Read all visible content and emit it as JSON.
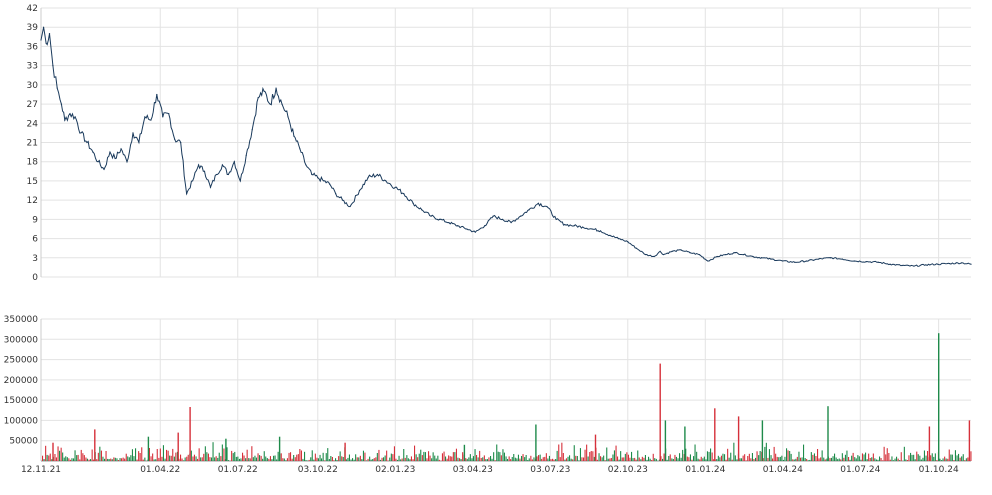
{
  "chart_data": [
    {
      "type": "line",
      "title": "",
      "xlabel": "",
      "ylabel": "",
      "ylim": [
        0,
        42
      ],
      "y_ticks": [
        0,
        3,
        6,
        9,
        12,
        15,
        18,
        21,
        24,
        27,
        30,
        33,
        36,
        39,
        42
      ],
      "grid": true,
      "line_color": "#1a3a5c",
      "series": [
        {
          "x": [
            "2021-11-12",
            "2021-11-15",
            "2021-11-18",
            "2021-11-22",
            "2021-11-26",
            "2021-12-01",
            "2021-12-06",
            "2021-12-10",
            "2021-12-16",
            "2021-12-22",
            "2021-12-29",
            "2022-01-05",
            "2022-01-12",
            "2022-01-18",
            "2022-01-25",
            "2022-02-01",
            "2022-02-07",
            "2022-02-14",
            "2022-02-21",
            "2022-02-28",
            "2022-03-07",
            "2022-03-14",
            "2022-03-21",
            "2022-03-28",
            "2022-04-04",
            "2022-04-11",
            "2022-04-18",
            "2022-04-25",
            "2022-05-02",
            "2022-05-09",
            "2022-05-16",
            "2022-05-23",
            "2022-05-30",
            "2022-06-06",
            "2022-06-13",
            "2022-06-20",
            "2022-06-27",
            "2022-07-04",
            "2022-07-11",
            "2022-07-18",
            "2022-07-25",
            "2022-08-01",
            "2022-08-08",
            "2022-08-15",
            "2022-08-22",
            "2022-08-29",
            "2022-09-05",
            "2022-09-12",
            "2022-09-19",
            "2022-09-26",
            "2022-10-03",
            "2022-10-10",
            "2022-10-17",
            "2022-10-24",
            "2022-11-01",
            "2022-11-10",
            "2022-11-21",
            "2022-12-01",
            "2022-12-12",
            "2022-12-22",
            "2023-01-02",
            "2023-01-12",
            "2023-01-23",
            "2023-02-02",
            "2023-02-13",
            "2023-02-23",
            "2023-03-06",
            "2023-03-16",
            "2023-03-27",
            "2023-04-06",
            "2023-04-17",
            "2023-04-27",
            "2023-05-08",
            "2023-05-18",
            "2023-05-29",
            "2023-06-08",
            "2023-06-19",
            "2023-06-29",
            "2023-07-10",
            "2023-07-20",
            "2023-07-31",
            "2023-08-10",
            "2023-08-21",
            "2023-08-31",
            "2023-09-11",
            "2023-09-21",
            "2023-10-02",
            "2023-10-12",
            "2023-10-23",
            "2023-11-02",
            "2023-11-09",
            "2023-11-13",
            "2023-11-23",
            "2023-12-04",
            "2023-12-14",
            "2023-12-25",
            "2024-01-04",
            "2024-01-15",
            "2024-01-25",
            "2024-02-05",
            "2024-02-15",
            "2024-02-26",
            "2024-03-07",
            "2024-03-18",
            "2024-04-01",
            "2024-04-15",
            "2024-04-29",
            "2024-05-13",
            "2024-05-27",
            "2024-06-10",
            "2024-06-24",
            "2024-07-08",
            "2024-07-22",
            "2024-08-05",
            "2024-08-19",
            "2024-09-02",
            "2024-09-16",
            "2024-09-30",
            "2024-10-14",
            "2024-10-28",
            "2024-11-08"
          ],
          "y": [
            37.0,
            39.0,
            36.5,
            38.0,
            33.0,
            29.5,
            27.0,
            24.5,
            25.5,
            25.0,
            22.5,
            21.0,
            19.5,
            18.0,
            16.8,
            19.5,
            18.5,
            20.0,
            18.0,
            22.5,
            21.0,
            25.0,
            24.5,
            28.5,
            25.0,
            25.5,
            21.5,
            21.0,
            13.0,
            15.0,
            17.5,
            16.5,
            14.0,
            16.0,
            17.5,
            16.0,
            18.0,
            15.0,
            19.0,
            23.0,
            28.0,
            29.0,
            27.0,
            29.5,
            27.0,
            25.0,
            22.0,
            20.0,
            17.5,
            16.0,
            15.5,
            15.0,
            14.5,
            13.0,
            12.0,
            11.0,
            13.5,
            15.5,
            16.0,
            15.0,
            14.0,
            13.0,
            11.5,
            10.5,
            9.5,
            9.0,
            8.5,
            8.0,
            7.5,
            7.0,
            8.0,
            9.5,
            9.0,
            8.5,
            9.5,
            10.5,
            11.5,
            11.0,
            9.0,
            8.2,
            8.0,
            7.8,
            7.5,
            7.2,
            6.5,
            6.0,
            5.5,
            4.5,
            3.5,
            3.2,
            4.0,
            3.5,
            4.0,
            4.2,
            3.8,
            3.5,
            2.5,
            3.2,
            3.5,
            3.8,
            3.5,
            3.2,
            3.0,
            2.8,
            2.5,
            2.3,
            2.5,
            2.8,
            3.0,
            2.8,
            2.5,
            2.4,
            2.3,
            2.0,
            1.8,
            1.7,
            1.9,
            2.0,
            2.1,
            2.2,
            2.0
          ]
        }
      ]
    },
    {
      "type": "bar",
      "title": "",
      "xlabel": "",
      "ylabel": "",
      "ylim": [
        0,
        350000
      ],
      "y_ticks": [
        0,
        50000,
        100000,
        150000,
        200000,
        250000,
        300000,
        350000
      ],
      "y_tick_labels": [
        "",
        "50000",
        "100000",
        "150000",
        "200000",
        "250000",
        "300000",
        "350000"
      ],
      "x_ticks": [
        "2021-11-12",
        "2022-04-01",
        "2022-07-01",
        "2022-10-03",
        "2023-01-02",
        "2023-04-03",
        "2023-07-03",
        "2023-10-02",
        "2024-01-01",
        "2024-04-01",
        "2024-07-01",
        "2024-10-01"
      ],
      "x_tick_labels": [
        "12.11.21",
        "01.04.22",
        "01.07.22",
        "03.10.22",
        "02.01.23",
        "03.04.23",
        "03.07.23",
        "02.10.23",
        "01.01.24",
        "01.04.24",
        "01.07.24",
        "01.10.24"
      ],
      "grid": true,
      "up_color": "#1e8a4a",
      "down_color": "#d6303a",
      "series": [
        {
          "name": "",
          "x": [
            "2021-11-26",
            "2022-01-14",
            "2022-03-18",
            "2022-04-22",
            "2022-05-06",
            "2022-06-17",
            "2022-08-19",
            "2022-11-04",
            "2023-03-24",
            "2023-06-16",
            "2023-08-25",
            "2023-11-09",
            "2023-11-15",
            "2023-12-08",
            "2024-01-12",
            "2024-02-09",
            "2024-03-08",
            "2024-05-24",
            "2024-09-20",
            "2024-10-01",
            "2024-11-06"
          ],
          "values": [
            45000,
            78000,
            60000,
            70000,
            133000,
            55000,
            60000,
            45000,
            40000,
            90000,
            65000,
            240000,
            100000,
            85000,
            130000,
            110000,
            100000,
            135000,
            85000,
            315000,
            100000
          ],
          "direction": [
            "down",
            "down",
            "up",
            "down",
            "down",
            "up",
            "up",
            "down",
            "up",
            "up",
            "down",
            "down",
            "up",
            "up",
            "down",
            "down",
            "up",
            "up",
            "down",
            "up",
            "down"
          ]
        }
      ]
    }
  ]
}
